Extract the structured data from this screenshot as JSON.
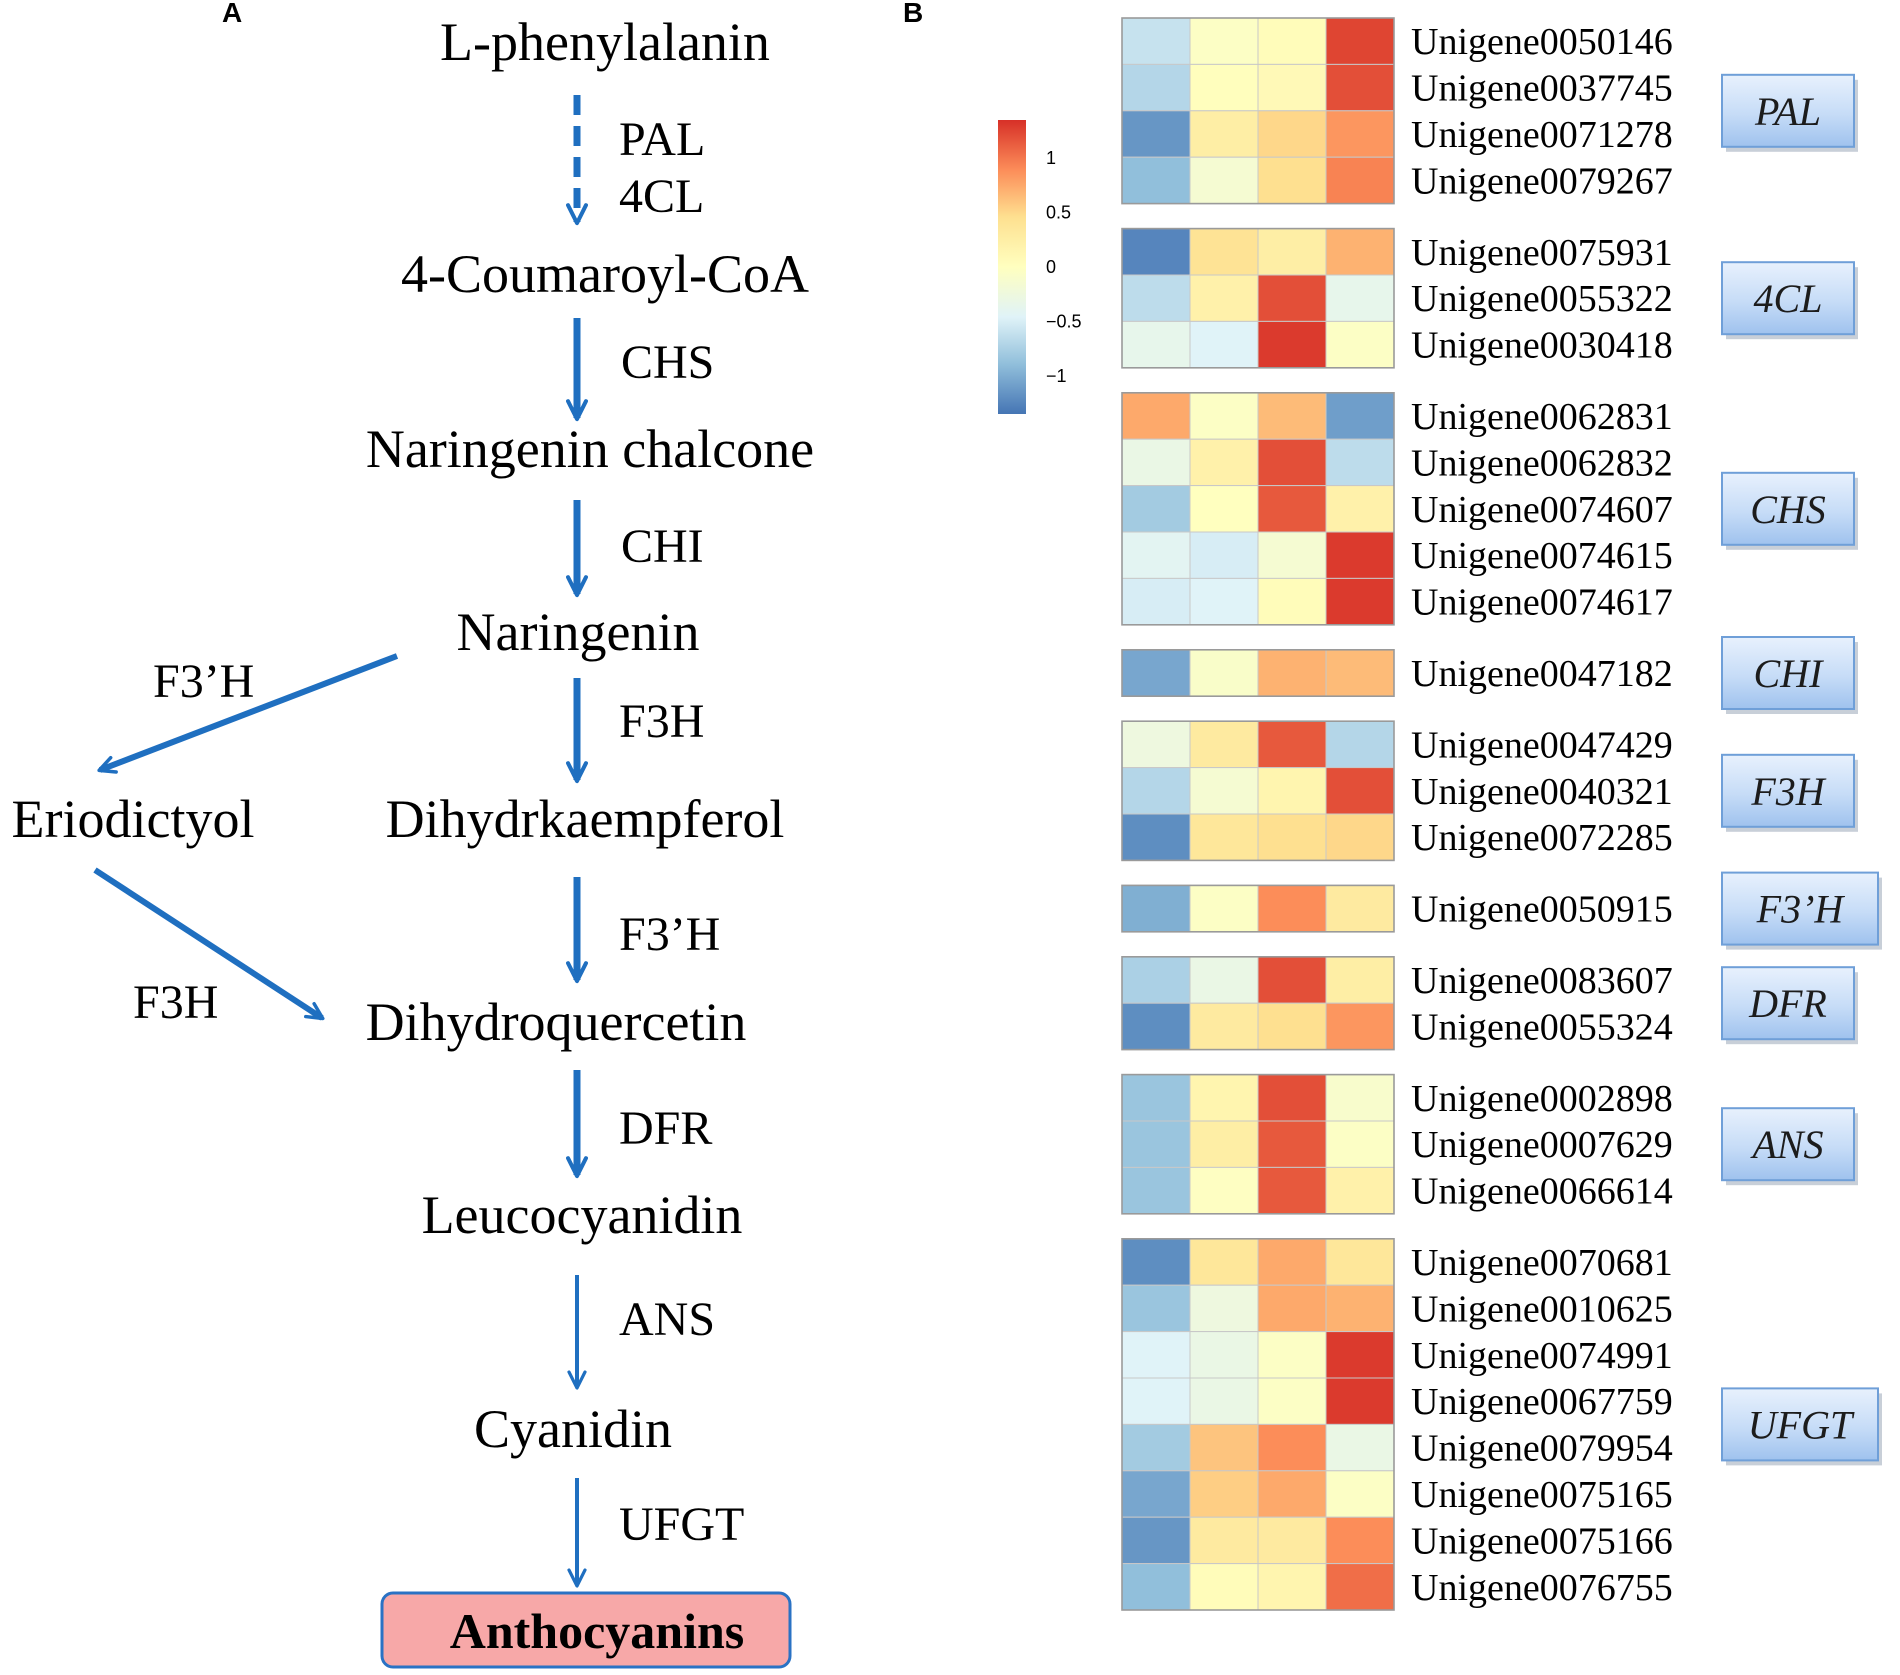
{
  "panels": {
    "a": "A",
    "b": "B"
  },
  "pathway": {
    "compounds": {
      "phe": "L-phenylalanin",
      "coum": "4-Coumaroyl-CoA",
      "nchal": "Naringenin chalcone",
      "nar": "Naringenin",
      "erio": "Eriodictyol",
      "dhk": "Dihydrkaempferol",
      "dhq": "Dihydroquercetin",
      "leuco": "Leucocyanidin",
      "cyan": "Cyanidin",
      "antho": "Anthocyanins"
    },
    "enzymes": {
      "pal": "PAL",
      "cl4": "4CL",
      "chs": "CHS",
      "chi": "CHI",
      "f3pH_left": "F3’H",
      "f3h_main": "F3H",
      "f3pH_main": "F3’H",
      "f3h_left": "F3H",
      "dfr": "DFR",
      "ans": "ANS",
      "ufgt": "UFGT"
    },
    "colors": {
      "arrow": "#1f6fc0",
      "final_box_fill": "#f7a8a8",
      "final_box_stroke": "#2a72c4"
    }
  },
  "heatmap": {
    "legend": {
      "ticks": [
        {
          "value": 1,
          "label": "1"
        },
        {
          "value": 0.5,
          "label": "0.5"
        },
        {
          "value": 0,
          "label": "0"
        },
        {
          "value": -0.5,
          "label": "−0.5"
        },
        {
          "value": -1,
          "label": "−1"
        }
      ],
      "range": [
        -1.35,
        1.35
      ]
    },
    "colorscale": [
      "#4575b4",
      "#91bfdb",
      "#e0f3f8",
      "#ffffbf",
      "#fee090",
      "#fc8d59",
      "#d73027"
    ],
    "groups": [
      {
        "gene": "PAL",
        "rows": [
          {
            "id": "Unigene0050146",
            "values": [
              -0.6,
              -0.05,
              0.05,
              1.25
            ]
          },
          {
            "id": "Unigene0037745",
            "values": [
              -0.7,
              0.02,
              0.08,
              1.2
            ]
          },
          {
            "id": "Unigene0071278",
            "values": [
              -1.15,
              0.25,
              0.5,
              0.85
            ]
          },
          {
            "id": "Unigene0079267",
            "values": [
              -0.9,
              -0.15,
              0.45,
              0.95
            ]
          }
        ]
      },
      {
        "gene": "4CL",
        "rows": [
          {
            "id": "Unigene0075931",
            "values": [
              -1.25,
              0.4,
              0.25,
              0.7
            ]
          },
          {
            "id": "Unigene0055322",
            "values": [
              -0.65,
              0.2,
              1.2,
              -0.35
            ]
          },
          {
            "id": "Unigene0030418",
            "values": [
              -0.35,
              -0.45,
              1.3,
              -0.05
            ]
          }
        ]
      },
      {
        "gene": "CHS",
        "rows": [
          {
            "id": "Unigene0062831",
            "values": [
              0.75,
              -0.05,
              0.65,
              -1.1
            ]
          },
          {
            "id": "Unigene0062832",
            "values": [
              -0.3,
              0.2,
              1.2,
              -0.65
            ]
          },
          {
            "id": "Unigene0074607",
            "values": [
              -0.8,
              0.0,
              1.15,
              0.2
            ]
          },
          {
            "id": "Unigene0074615",
            "values": [
              -0.4,
              -0.5,
              -0.15,
              1.3
            ]
          },
          {
            "id": "Unigene0074617",
            "values": [
              -0.5,
              -0.45,
              0.05,
              1.3
            ]
          }
        ]
      },
      {
        "gene": "CHI",
        "rows": [
          {
            "id": "Unigene0047182",
            "values": [
              -1.05,
              -0.08,
              0.7,
              0.65
            ]
          }
        ]
      },
      {
        "gene": "F3H",
        "rows": [
          {
            "id": "Unigene0047429",
            "values": [
              -0.25,
              0.3,
              1.15,
              -0.7
            ]
          },
          {
            "id": "Unigene0040321",
            "values": [
              -0.7,
              -0.15,
              0.15,
              1.2
            ]
          },
          {
            "id": "Unigene0072285",
            "values": [
              -1.2,
              0.35,
              0.45,
              0.5
            ]
          }
        ]
      },
      {
        "gene": "F3’H",
        "rows": [
          {
            "id": "Unigene0050915",
            "values": [
              -1.0,
              -0.05,
              0.9,
              0.3
            ]
          }
        ]
      },
      {
        "gene": "DFR",
        "rows": [
          {
            "id": "Unigene0083607",
            "values": [
              -0.75,
              -0.3,
              1.2,
              0.25
            ]
          },
          {
            "id": "Unigene0055324",
            "values": [
              -1.2,
              0.3,
              0.45,
              0.85
            ]
          }
        ]
      },
      {
        "gene": "ANS",
        "rows": [
          {
            "id": "Unigene0002898",
            "values": [
              -0.85,
              0.15,
              1.2,
              -0.1
            ]
          },
          {
            "id": "Unigene0007629",
            "values": [
              -0.85,
              0.25,
              1.15,
              -0.05
            ]
          },
          {
            "id": "Unigene0066614",
            "values": [
              -0.85,
              -0.02,
              1.15,
              0.2
            ]
          }
        ]
      },
      {
        "gene": "UFGT",
        "rows": [
          {
            "id": "Unigene0070681",
            "values": [
              -1.2,
              0.35,
              0.75,
              0.35
            ]
          },
          {
            "id": "Unigene0010625",
            "values": [
              -0.85,
              -0.25,
              0.75,
              0.7
            ]
          },
          {
            "id": "Unigene0074991",
            "values": [
              -0.45,
              -0.3,
              -0.05,
              1.3
            ]
          },
          {
            "id": "Unigene0067759",
            "values": [
              -0.45,
              -0.3,
              -0.05,
              1.3
            ]
          },
          {
            "id": "Unigene0079954",
            "values": [
              -0.8,
              0.6,
              0.9,
              -0.3
            ]
          },
          {
            "id": "Unigene0075165",
            "values": [
              -1.05,
              0.55,
              0.75,
              -0.05
            ]
          },
          {
            "id": "Unigene0075166",
            "values": [
              -1.15,
              0.3,
              0.3,
              0.9
            ]
          },
          {
            "id": "Unigene0076755",
            "values": [
              -0.9,
              0.05,
              0.15,
              1.05
            ]
          }
        ]
      }
    ]
  }
}
